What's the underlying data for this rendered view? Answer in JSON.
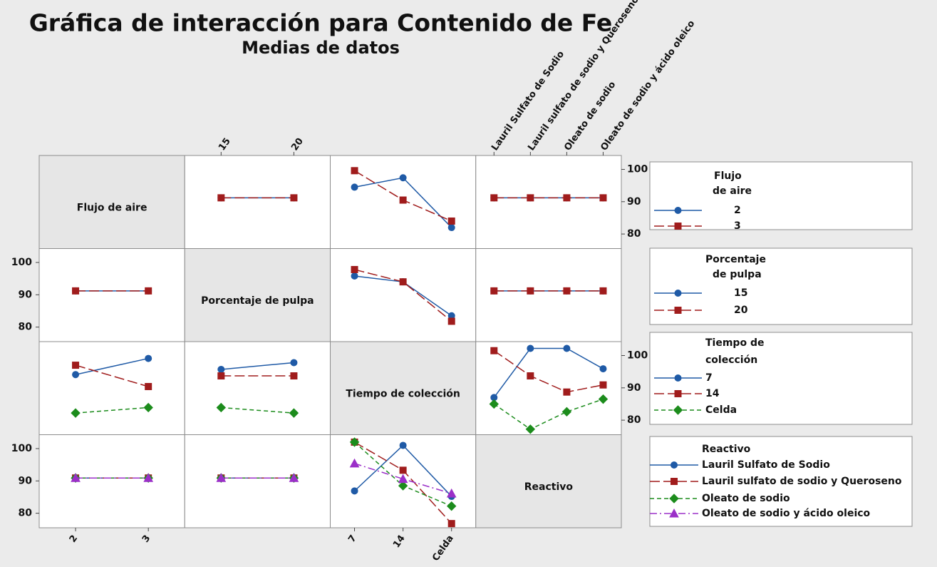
{
  "chart_data": {
    "type": "interaction",
    "title": "Gráfica de interacción para Contenido de Fe",
    "subtitle": "Medias de datos",
    "ylim": [
      75.5,
      104.3
    ],
    "yticks": [
      80,
      90,
      100
    ],
    "colors": [
      "#1f5aa6",
      "#a01c1c",
      "#1c8c1c",
      "#9b30c8"
    ],
    "markers": [
      "circle",
      "square",
      "diamond",
      "triangle"
    ],
    "dashes": [
      "solid",
      "long-dash",
      "dash",
      "dash-dot"
    ],
    "factors": [
      {
        "name": "Flujo de aire",
        "legend_title": [
          "Flujo",
          "de aire"
        ],
        "levels": [
          "2",
          "3"
        ]
      },
      {
        "name": "Porcentaje de pulpa",
        "legend_title": [
          "Porcentaje",
          "de pulpa"
        ],
        "levels": [
          "15",
          "20"
        ]
      },
      {
        "name": "Tiempo de colección",
        "legend_title": [
          "Tiempo de",
          "colección"
        ],
        "levels": [
          "7",
          "14",
          "Celda"
        ]
      },
      {
        "name": "Reactivo",
        "legend_title": [
          "Reactivo"
        ],
        "levels": [
          "Lauril Sulfato de Sodio",
          "Lauril sulfato de sodio y Queroseno",
          "Oleato de sodio",
          "Oleato de sodio y ácido oleico"
        ]
      }
    ],
    "interactions": [
      {
        "trace_factor": 0,
        "x_factor": 1,
        "series": [
          {
            "values": [
              91.2,
              91.2
            ]
          },
          {
            "values": [
              91.2,
              91.2
            ]
          }
        ]
      },
      {
        "trace_factor": 0,
        "x_factor": 2,
        "series": [
          {
            "values": [
              94.5,
              97.4,
              82.0
            ]
          },
          {
            "values": [
              99.6,
              90.5,
              84.0
            ]
          }
        ]
      },
      {
        "trace_factor": 0,
        "x_factor": 3,
        "series": [
          {
            "values": [
              91.2,
              91.2,
              91.2,
              91.2
            ]
          },
          {
            "values": [
              91.2,
              91.2,
              91.2,
              91.2
            ]
          }
        ]
      },
      {
        "trace_factor": 1,
        "x_factor": 0,
        "series": [
          {
            "values": [
              91.2,
              91.2
            ]
          },
          {
            "values": [
              91.2,
              91.2
            ]
          }
        ]
      },
      {
        "trace_factor": 1,
        "x_factor": 2,
        "series": [
          {
            "values": [
              95.8,
              94.0,
              83.5
            ]
          },
          {
            "values": [
              97.8,
              94.0,
              81.8
            ]
          }
        ]
      },
      {
        "trace_factor": 1,
        "x_factor": 3,
        "series": [
          {
            "values": [
              91.2,
              91.2,
              91.2,
              91.2
            ]
          },
          {
            "values": [
              91.2,
              91.2,
              91.2,
              91.2
            ]
          }
        ]
      },
      {
        "trace_factor": 2,
        "x_factor": 0,
        "series": [
          {
            "values": [
              94.1,
              99.1
            ]
          },
          {
            "values": [
              97.0,
              90.4
            ]
          },
          {
            "values": [
              82.2,
              83.9
            ]
          }
        ]
      },
      {
        "trace_factor": 2,
        "x_factor": 1,
        "series": [
          {
            "values": [
              95.7,
              97.8
            ]
          },
          {
            "values": [
              93.7,
              93.7
            ]
          },
          {
            "values": [
              83.9,
              82.2
            ]
          }
        ]
      },
      {
        "trace_factor": 2,
        "x_factor": 3,
        "series": [
          {
            "values": [
              87.0,
              102.2,
              102.2,
              95.9
            ]
          },
          {
            "values": [
              101.5,
              93.7,
              88.7,
              90.9
            ]
          },
          {
            "values": [
              85.0,
              77.2,
              82.6,
              86.5
            ]
          }
        ]
      },
      {
        "trace_factor": 3,
        "x_factor": 0,
        "series": [
          {
            "values": [
              90.9,
              90.9
            ]
          },
          {
            "values": [
              90.9,
              90.9
            ]
          },
          {
            "values": [
              90.9,
              90.9
            ]
          },
          {
            "values": [
              90.9,
              90.9
            ]
          }
        ]
      },
      {
        "trace_factor": 3,
        "x_factor": 1,
        "series": [
          {
            "values": [
              90.9,
              90.9
            ]
          },
          {
            "values": [
              90.9,
              90.9
            ]
          },
          {
            "values": [
              90.9,
              90.9
            ]
          },
          {
            "values": [
              90.9,
              90.9
            ]
          }
        ]
      },
      {
        "trace_factor": 3,
        "x_factor": 2,
        "series": [
          {
            "values": [
              86.9,
              101.0,
              85.2
            ]
          },
          {
            "values": [
              102.0,
              93.3,
              76.8
            ]
          },
          {
            "values": [
              102.0,
              88.5,
              82.2
            ]
          },
          {
            "values": [
              95.4,
              90.6,
              86.1
            ]
          }
        ]
      }
    ]
  }
}
